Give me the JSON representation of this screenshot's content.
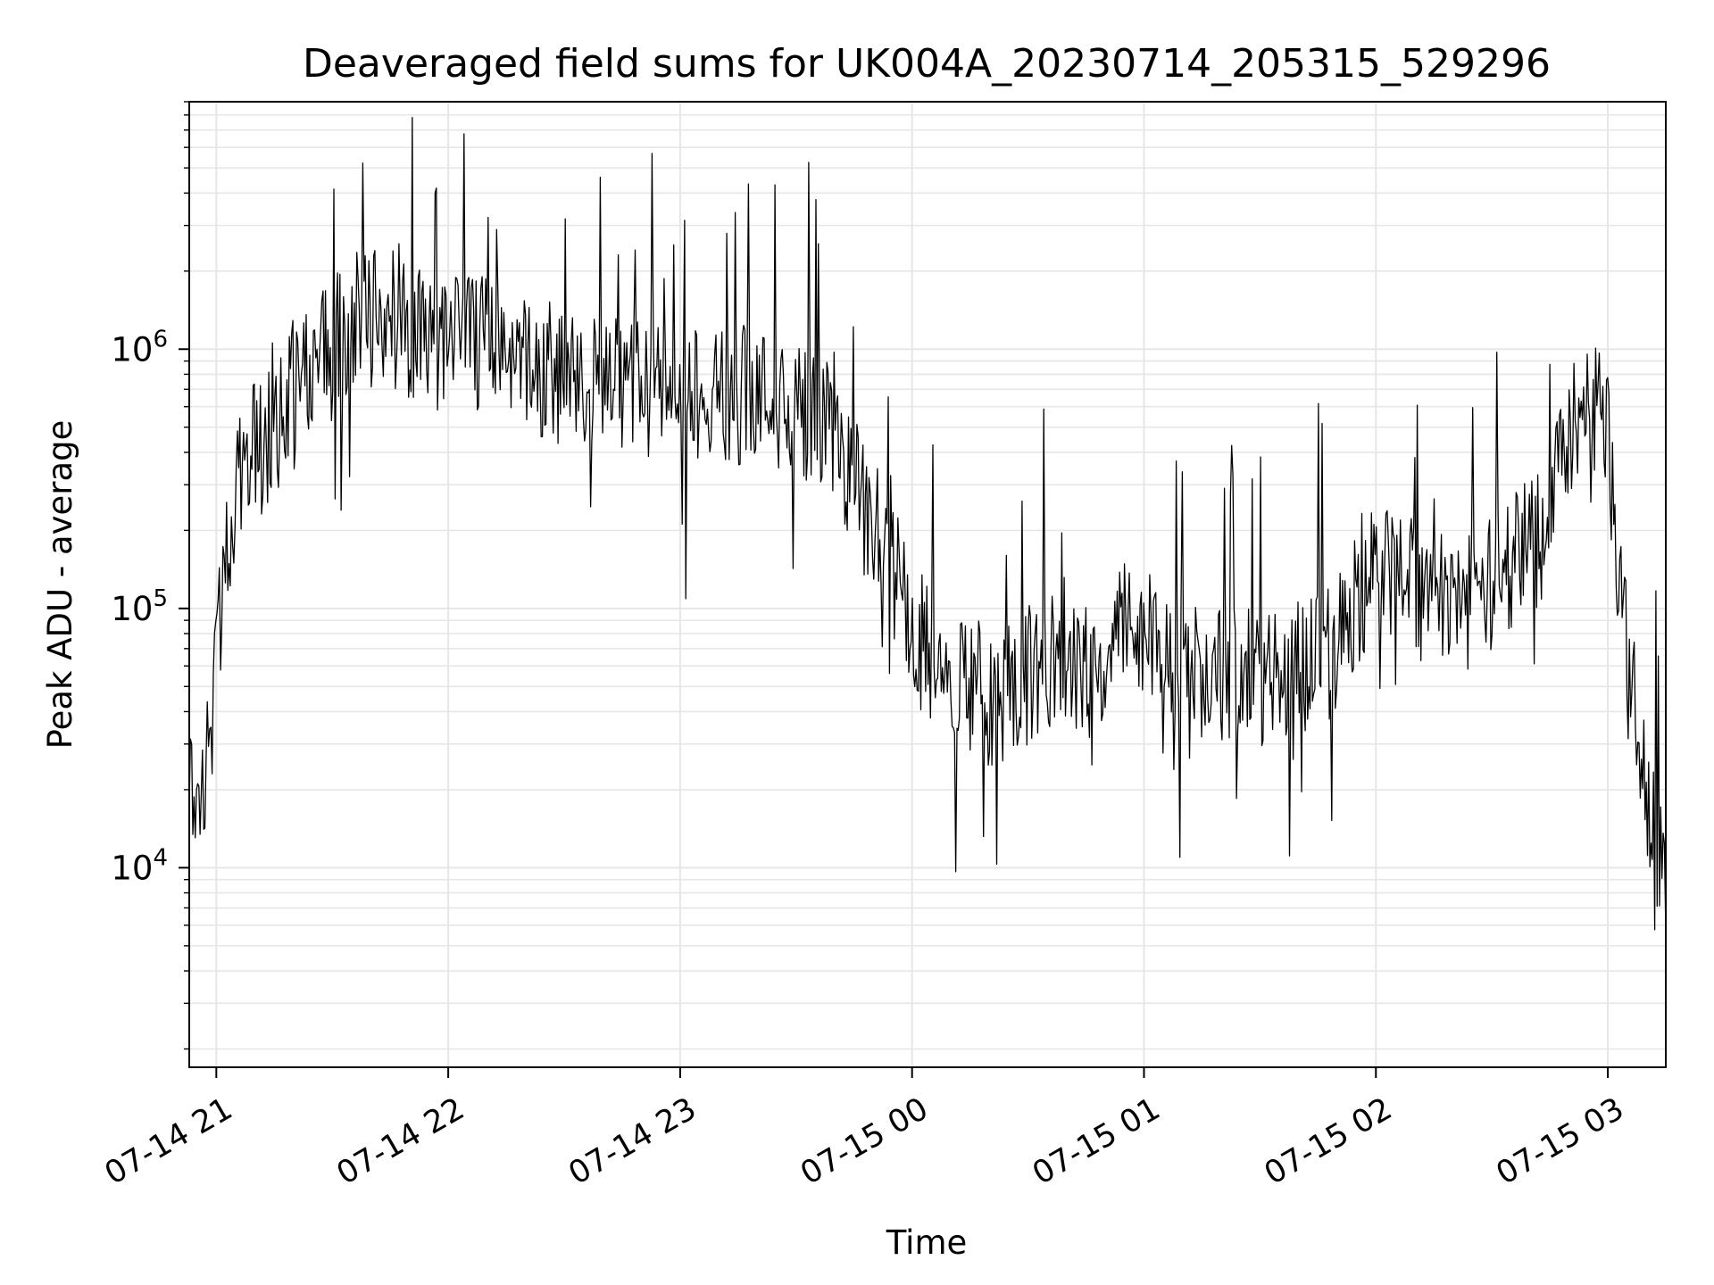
{
  "chart_data": {
    "type": "line",
    "title": "Deaveraged field sums for UK004A_20230714_205315_529296",
    "xlabel": "Time",
    "ylabel": "Peak ADU - average",
    "yscale": "log",
    "ylim": [
      1700,
      9000000
    ],
    "xlim": [
      "2023-07-14 20:53",
      "2023-07-15 03:15"
    ],
    "grid": true,
    "line_color": "#000000",
    "grid_color": "#e6e6e6",
    "x_ticks": [
      {
        "value": "2023-07-14 21:00",
        "label": "07-14 21"
      },
      {
        "value": "2023-07-14 22:00",
        "label": "07-14 22"
      },
      {
        "value": "2023-07-14 23:00",
        "label": "07-14 23"
      },
      {
        "value": "2023-07-15 00:00",
        "label": "07-15 00"
      },
      {
        "value": "2023-07-15 01:00",
        "label": "07-15 01"
      },
      {
        "value": "2023-07-15 02:00",
        "label": "07-15 02"
      },
      {
        "value": "2023-07-15 03:00",
        "label": "07-15 03"
      }
    ],
    "y_ticks": [
      {
        "value": 10000,
        "base": "10",
        "exp": "4"
      },
      {
        "value": 100000,
        "base": "10",
        "exp": "5"
      },
      {
        "value": 1000000,
        "base": "10",
        "exp": "6"
      }
    ],
    "series": [
      {
        "x": [
          "2023-07-14 20:53",
          "2023-07-14 20:55",
          "2023-07-14 20:57",
          "2023-07-14 20:59",
          "2023-07-14 21:01",
          "2023-07-14 21:03",
          "2023-07-14 21:05",
          "2023-07-14 21:07",
          "2023-07-14 21:10",
          "2023-07-14 21:15",
          "2023-07-14 21:20",
          "2023-07-14 21:25",
          "2023-07-14 21:30",
          "2023-07-14 21:35",
          "2023-07-14 21:40",
          "2023-07-14 21:45",
          "2023-07-14 21:50",
          "2023-07-14 21:55",
          "2023-07-14 22:00",
          "2023-07-14 22:10",
          "2023-07-14 22:20",
          "2023-07-14 22:30",
          "2023-07-14 22:40",
          "2023-07-14 22:50",
          "2023-07-14 23:00",
          "2023-07-14 23:10",
          "2023-07-14 23:20",
          "2023-07-14 23:30",
          "2023-07-14 23:40",
          "2023-07-14 23:45",
          "2023-07-14 23:50",
          "2023-07-14 23:55",
          "2023-07-15 00:00",
          "2023-07-15 00:05",
          "2023-07-15 00:10",
          "2023-07-15 00:15",
          "2023-07-15 00:20",
          "2023-07-15 00:25",
          "2023-07-15 00:30",
          "2023-07-15 00:35",
          "2023-07-15 00:40",
          "2023-07-15 00:45",
          "2023-07-15 00:50",
          "2023-07-15 00:55",
          "2023-07-15 01:00",
          "2023-07-15 01:05",
          "2023-07-15 01:10",
          "2023-07-15 01:20",
          "2023-07-15 01:30",
          "2023-07-15 01:40",
          "2023-07-15 01:50",
          "2023-07-15 02:00",
          "2023-07-15 02:10",
          "2023-07-15 02:20",
          "2023-07-15 02:30",
          "2023-07-15 02:40",
          "2023-07-15 02:50",
          "2023-07-15 02:55",
          "2023-07-15 02:58",
          "2023-07-15 03:00",
          "2023-07-15 03:02",
          "2023-07-15 03:05",
          "2023-07-15 03:10",
          "2023-07-15 03:15"
        ],
        "y": [
          30000,
          15000,
          20000,
          40000,
          100000,
          150000,
          300000,
          400000,
          400000,
          500000,
          700000,
          900000,
          1000000,
          1200000,
          1300000,
          1500000,
          1200000,
          1000000,
          1100000,
          1000000,
          900000,
          800000,
          700000,
          700000,
          650000,
          700000,
          650000,
          600000,
          500000,
          300000,
          200000,
          150000,
          80000,
          65000,
          55000,
          50000,
          45000,
          50000,
          55000,
          60000,
          60000,
          65000,
          70000,
          80000,
          90000,
          80000,
          60000,
          55000,
          55000,
          60000,
          70000,
          150000,
          120000,
          100000,
          120000,
          200000,
          400000,
          600000,
          700000,
          500000,
          200000,
          60000,
          20000,
          8000
        ],
        "approximate_trend": true
      }
    ]
  }
}
